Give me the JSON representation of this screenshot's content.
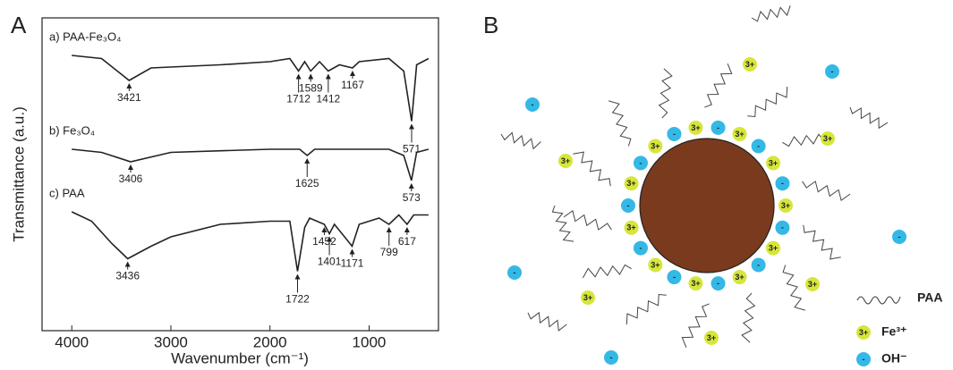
{
  "chart_data": {
    "type": "line",
    "panel": "A",
    "xlabel": "Wavenumber (cm⁻¹)",
    "ylabel": "Transmittance (a.u.)",
    "xlim": [
      4300,
      300
    ],
    "xticks": [
      4000,
      3000,
      2000,
      1000
    ],
    "ylim": [
      0,
      100
    ],
    "series": [
      {
        "name": "a) PAA-Fe₃O₄",
        "color": "#222222",
        "x": [
          4000,
          3700,
          3421,
          3200,
          2500,
          2000,
          1800,
          1712,
          1650,
          1589,
          1500,
          1412,
          1300,
          1167,
          1100,
          800,
          650,
          571,
          520,
          400
        ],
        "values": [
          88,
          87,
          80,
          84,
          85,
          86,
          87,
          83,
          86,
          83,
          86,
          83,
          85,
          84,
          86,
          87,
          83,
          67,
          85,
          87
        ],
        "peaks": [
          3421,
          1712,
          1589,
          1412,
          1167,
          571
        ]
      },
      {
        "name": "b) Fe₃O₄",
        "color": "#222222",
        "x": [
          4000,
          3700,
          3406,
          3000,
          2000,
          1700,
          1625,
          1550,
          800,
          650,
          573,
          520,
          400
        ],
        "values": [
          58,
          57,
          54,
          57,
          58,
          58,
          56,
          58,
          58,
          56,
          48,
          57,
          58
        ],
        "peaks": [
          3406,
          1625,
          573
        ]
      },
      {
        "name": "c) PAA",
        "color": "#222222",
        "x": [
          4000,
          3800,
          3600,
          3436,
          3200,
          3000,
          2500,
          2000,
          1800,
          1722,
          1650,
          1600,
          1452,
          1401,
          1350,
          1171,
          1100,
          900,
          799,
          700,
          617,
          550,
          400
        ],
        "values": [
          38,
          35,
          28,
          23,
          27,
          30,
          34,
          35,
          35,
          19,
          33,
          36,
          34,
          31,
          34,
          27,
          34,
          36,
          34,
          37,
          34,
          37,
          37
        ],
        "peaks": [
          3436,
          1722,
          1452,
          1401,
          1171,
          799,
          617
        ]
      }
    ]
  },
  "diagram": {
    "panel": "B",
    "fe_label": "3+",
    "oh_label": "-",
    "legend": {
      "paa": "PAA",
      "fe": "Fe³⁺",
      "oh": "OH⁻"
    }
  }
}
